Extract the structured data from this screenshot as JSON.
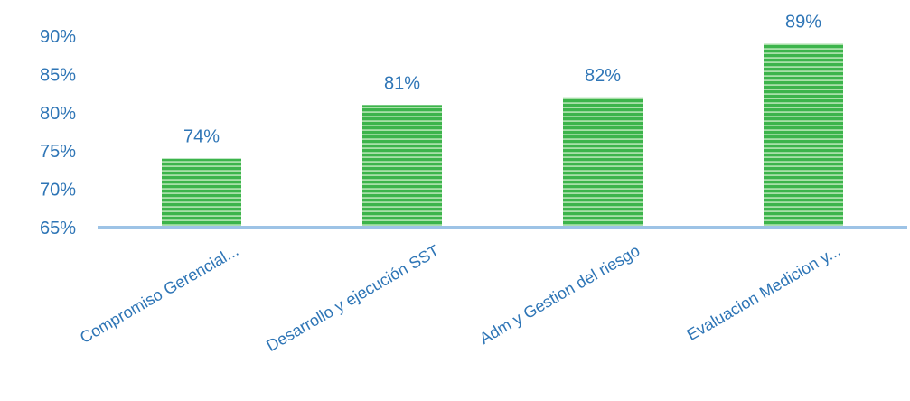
{
  "chart_data": {
    "type": "bar",
    "title": "",
    "xlabel": "",
    "ylabel": "",
    "categories": [
      "Compromiso Gerencial...",
      "Desarrollo y ejecución SST",
      "Adm y Gestion del riesgo",
      "Evaluacion Medicion y..."
    ],
    "values": [
      74,
      81,
      82,
      89
    ],
    "data_labels": [
      "74%",
      "81%",
      "82%",
      "89%"
    ],
    "ylim": [
      65,
      90
    ],
    "yticks": [
      65,
      70,
      75,
      80,
      85,
      90
    ],
    "ytick_labels": [
      "65%",
      "70%",
      "75%",
      "80%",
      "85%",
      "90%"
    ],
    "grid": false,
    "legend": "none",
    "colors": {
      "bar": "#3cb44b",
      "bar_stripe": "#a8e0a8",
      "axis": "#9dc3e6",
      "text": "#2e75b6"
    }
  }
}
